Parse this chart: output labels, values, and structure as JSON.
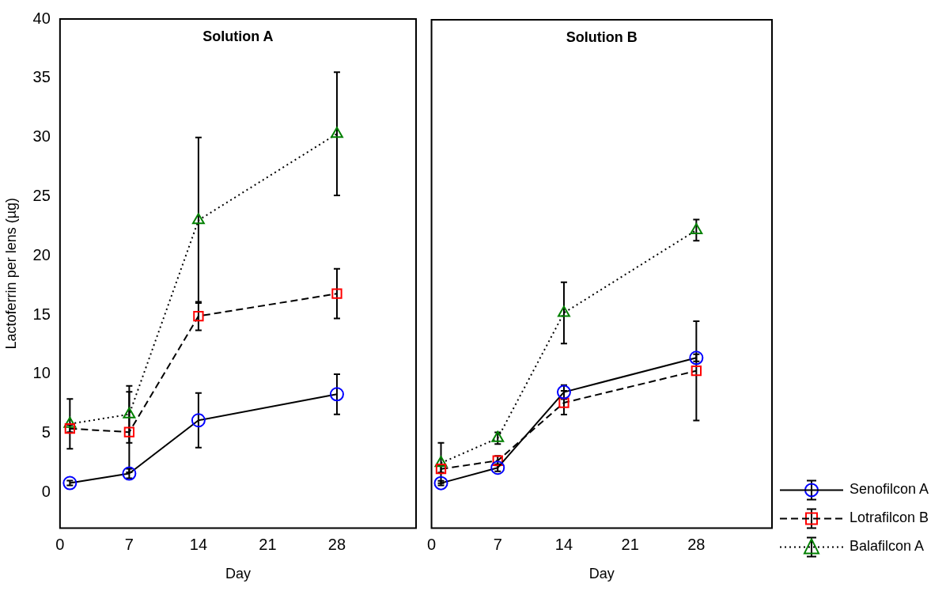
{
  "chart_data": [
    {
      "type": "line",
      "title": "Solution A",
      "xlabel": "Day",
      "ylabel": "Lactoferrin per lens (µg)",
      "xlim": [
        0,
        36
      ],
      "xticks": [
        0,
        7,
        14,
        21,
        28
      ],
      "ylim": [
        -3,
        40
      ],
      "yticks": [
        0,
        5,
        10,
        15,
        20,
        25,
        30,
        35,
        40
      ],
      "grid": false,
      "legend": false,
      "series": [
        {
          "color": "#0000ff",
          "marker": "circle",
          "line_style": "solid",
          "x": [
            1,
            7,
            14,
            28
          ],
          "values": [
            0.8,
            1.6,
            6.1,
            8.3
          ],
          "errors": [
            0.2,
            0.4,
            2.3,
            1.7
          ]
        },
        {
          "color": "#ff0000",
          "marker": "square",
          "line_style": "dashed",
          "x": [
            1,
            7,
            14,
            28
          ],
          "values": [
            5.4,
            5.1,
            14.9,
            16.8
          ],
          "errors": [
            0.3,
            3.4,
            1.2,
            2.1
          ]
        },
        {
          "color": "#008000",
          "marker": "triangle",
          "line_style": "dotted",
          "x": [
            1,
            7,
            14,
            28
          ],
          "values": [
            5.8,
            6.6,
            23.0,
            30.3
          ],
          "errors": [
            2.1,
            2.4,
            7.0,
            5.2
          ]
        }
      ]
    },
    {
      "type": "line",
      "title": "Solution B",
      "xlabel": "Day",
      "xlim": [
        0,
        36
      ],
      "xticks": [
        0,
        7,
        14,
        21,
        28
      ],
      "ylim": [
        -3,
        40
      ],
      "tick_labels": "x",
      "grid": false,
      "legend": "bottom right",
      "series": [
        {
          "name": "Senofilcon A",
          "color": "#0000ff",
          "marker": "circle",
          "line_style": "solid",
          "x": [
            1,
            7,
            14,
            28
          ],
          "values": [
            0.8,
            2.1,
            8.5,
            11.4
          ],
          "errors": [
            0.2,
            0.3,
            0.6,
            0.3
          ]
        },
        {
          "name": "Lotrafilcon B",
          "color": "#ff0000",
          "marker": "square",
          "line_style": "dashed",
          "x": [
            1,
            7,
            14,
            28
          ],
          "values": [
            2.0,
            2.7,
            7.6,
            10.3
          ],
          "errors": [
            0.3,
            0.4,
            1.0,
            4.2
          ]
        },
        {
          "name": "Balafilcon A",
          "color": "#008000",
          "marker": "triangle",
          "line_style": "dotted",
          "x": [
            1,
            7,
            14,
            28
          ],
          "values": [
            2.5,
            4.6,
            15.2,
            22.2
          ],
          "errors": [
            1.7,
            0.5,
            2.6,
            0.9
          ]
        }
      ]
    }
  ]
}
